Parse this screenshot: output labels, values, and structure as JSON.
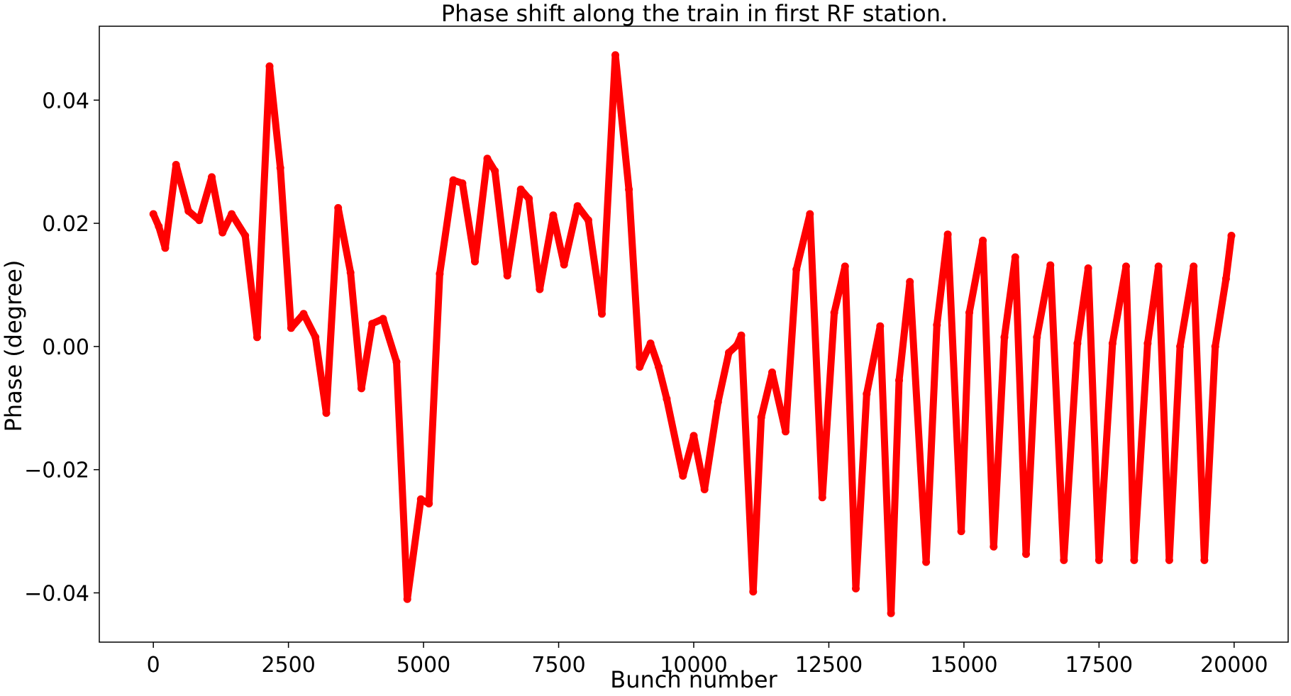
{
  "chart_data": {
    "type": "scatter",
    "title": "Phase shift along the train in first RF station.",
    "xlabel": "Bunch number",
    "ylabel": "Phase (degree)",
    "xlim": [
      -1000,
      21000
    ],
    "ylim": [
      -0.048,
      0.052
    ],
    "xticks": [
      0,
      2500,
      5000,
      7500,
      10000,
      12500,
      15000,
      17500,
      20000
    ],
    "xtick_labels": [
      "0",
      "2500",
      "5000",
      "7500",
      "10000",
      "12500",
      "15000",
      "17500",
      "20000"
    ],
    "yticks": [
      0.04,
      0.02,
      0.0,
      -0.02,
      -0.04
    ],
    "ytick_labels": [
      "0.04",
      "0.02",
      "0.00",
      "−0.02",
      "−0.04"
    ],
    "grid": false,
    "color": "#ff0000",
    "series": [
      {
        "x": [
          0,
          100,
          220,
          420,
          650,
          850,
          1080,
          1280,
          1450,
          1700,
          1920,
          2150,
          2350,
          2550,
          2780,
          3000,
          3200,
          3420,
          3650,
          3850,
          4050,
          4250,
          4500,
          4700,
          4950,
          5100,
          5300,
          5550,
          5720,
          5950,
          6180,
          6320,
          6550,
          6800,
          6950,
          7150,
          7400,
          7600,
          7850,
          8050,
          8300,
          8550,
          8800,
          9000,
          9200,
          9350,
          9500,
          9800,
          10000,
          10200,
          10450,
          10650,
          10800,
          10880,
          11100,
          11250,
          11450,
          11700,
          11900,
          12150,
          12380,
          12600,
          12800,
          13000,
          13200,
          13450,
          13650,
          13800,
          14000,
          14300,
          14500,
          14700,
          14950,
          15100,
          15350,
          15550,
          15750,
          15950,
          16150,
          16350,
          16600,
          16850,
          17100,
          17300,
          17500,
          17750,
          18000,
          18150,
          18400,
          18600,
          18800,
          19000,
          19250,
          19450,
          19650,
          19850,
          19950
        ],
        "y": [
          0.0215,
          0.0195,
          0.016,
          0.0295,
          0.022,
          0.0205,
          0.0275,
          0.0185,
          0.0215,
          0.018,
          0.0015,
          0.0455,
          0.029,
          0.003,
          0.0053,
          0.0015,
          -0.0108,
          0.0225,
          0.012,
          -0.0068,
          0.0037,
          0.0045,
          -0.0025,
          -0.041,
          -0.0248,
          -0.0255,
          0.0118,
          0.027,
          0.0265,
          0.0138,
          0.0305,
          0.0285,
          0.0115,
          0.0255,
          0.024,
          0.0093,
          0.0213,
          0.0133,
          0.0228,
          0.0205,
          0.0053,
          0.0473,
          0.0255,
          -0.0033,
          0.0005,
          -0.0033,
          -0.0085,
          -0.021,
          -0.0145,
          -0.0232,
          -0.009,
          -0.001,
          0.0002,
          0.0018,
          -0.0398,
          -0.0115,
          -0.0042,
          -0.0138,
          0.0125,
          0.0215,
          -0.0245,
          0.0055,
          0.013,
          -0.0393,
          -0.0077,
          0.0033,
          -0.0433,
          -0.0055,
          0.0105,
          -0.035,
          0.0035,
          0.0182,
          -0.03,
          0.0055,
          0.0172,
          -0.0325,
          0.0015,
          0.0145,
          -0.0337,
          0.0015,
          0.0132,
          -0.0347,
          0.0005,
          0.0127,
          -0.0347,
          0.0005,
          0.013,
          -0.0347,
          0.0005,
          0.013,
          -0.0347,
          0.0,
          0.013,
          -0.0347,
          0.0,
          0.011,
          0.018
        ]
      }
    ]
  }
}
